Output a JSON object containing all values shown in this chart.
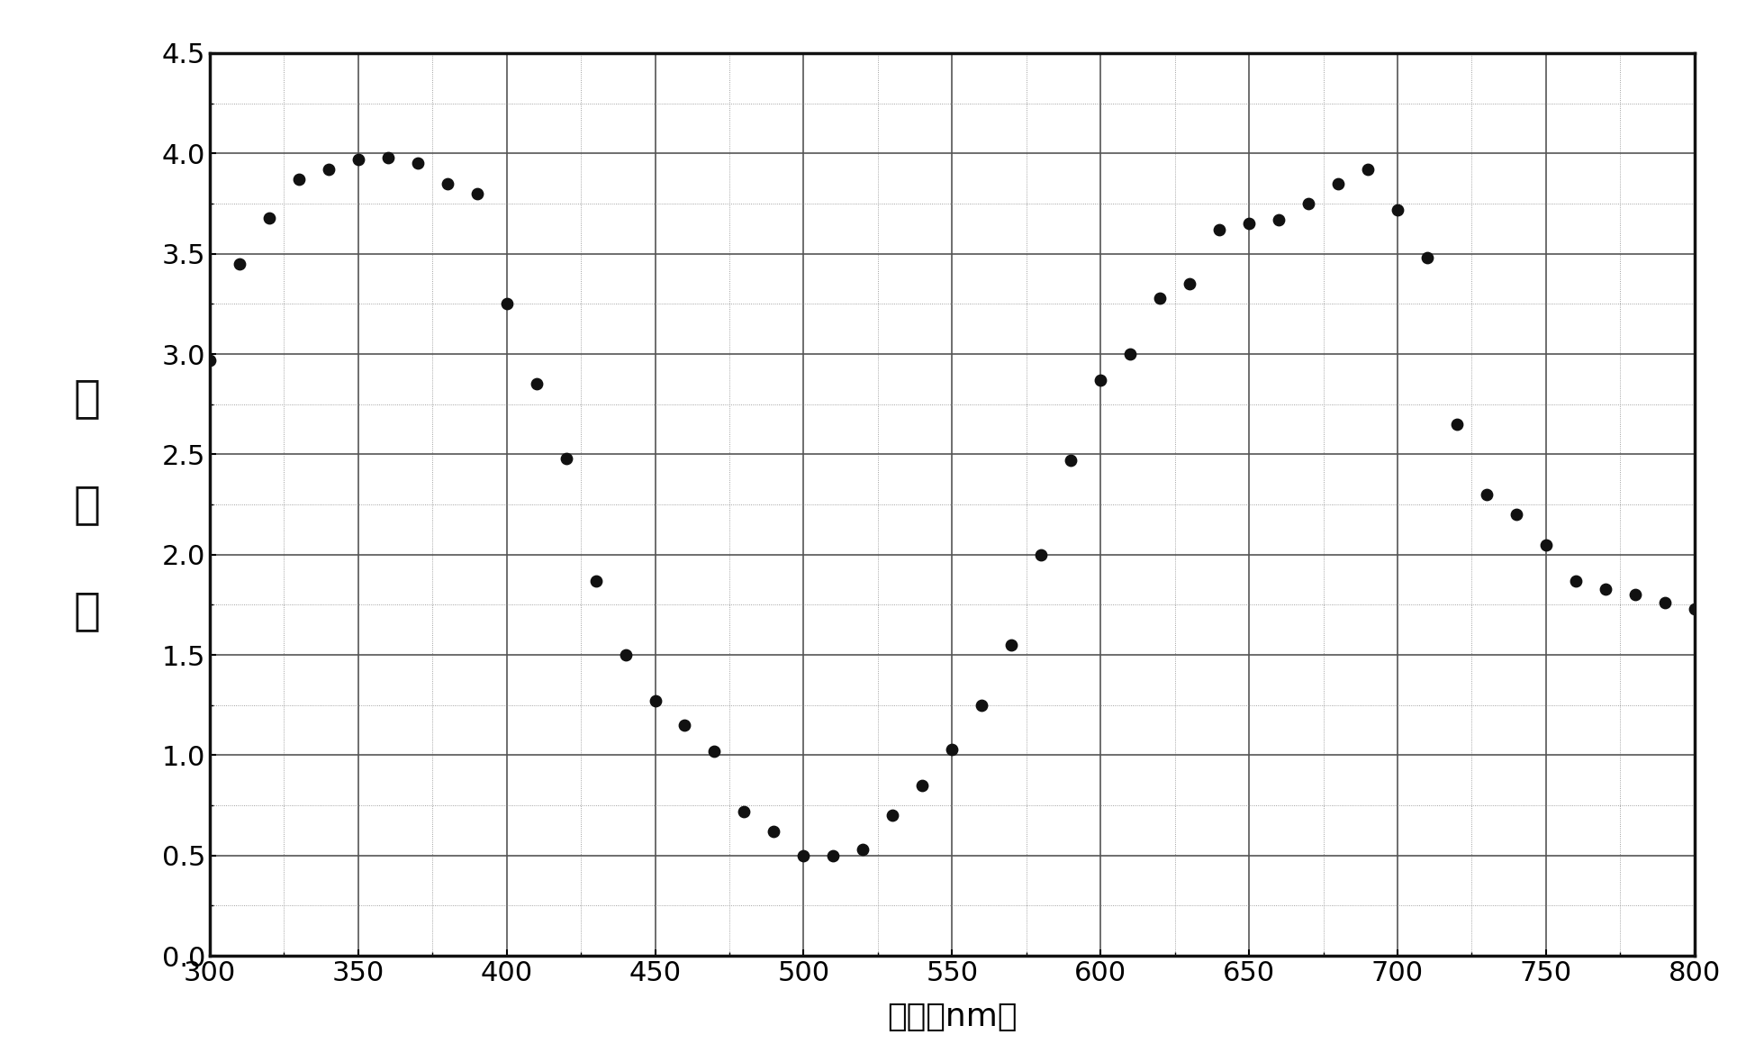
{
  "x": [
    300,
    310,
    320,
    330,
    340,
    350,
    360,
    370,
    380,
    390,
    400,
    410,
    420,
    430,
    440,
    450,
    460,
    470,
    480,
    490,
    500,
    510,
    520,
    530,
    540,
    550,
    560,
    570,
    580,
    590,
    600,
    610,
    620,
    630,
    640,
    650,
    660,
    670,
    680,
    690,
    700,
    710,
    720,
    730,
    740,
    750,
    760,
    770,
    780,
    790,
    800
  ],
  "y": [
    2.97,
    3.45,
    3.68,
    3.87,
    3.92,
    3.97,
    3.98,
    3.95,
    3.85,
    3.8,
    3.25,
    2.85,
    2.48,
    1.87,
    1.5,
    1.27,
    1.15,
    1.02,
    0.72,
    0.62,
    0.5,
    0.5,
    0.53,
    0.7,
    0.85,
    1.03,
    1.25,
    1.55,
    2.0,
    2.47,
    2.87,
    3.0,
    3.28,
    3.35,
    3.62,
    3.65,
    3.67,
    3.75,
    3.85,
    3.92,
    3.72,
    3.48,
    2.65,
    2.3,
    2.2,
    2.05,
    1.87,
    1.83,
    1.8,
    1.76,
    1.73
  ],
  "xlabel": "波长（nm）",
  "ylabel_chars": [
    "吸",
    "光",
    "度"
  ],
  "xlim": [
    300,
    800
  ],
  "ylim": [
    0,
    4.5
  ],
  "xticks": [
    300,
    350,
    400,
    450,
    500,
    550,
    600,
    650,
    700,
    750,
    800
  ],
  "yticks": [
    0,
    0.5,
    1,
    1.5,
    2,
    2.5,
    3,
    3.5,
    4,
    4.5
  ],
  "dot_color": "#111111",
  "dot_size": 80,
  "background_color": "#ffffff",
  "plot_bg_color": "#ffffff",
  "major_grid_color": "#555555",
  "minor_grid_color": "#888888",
  "spine_color": "#111111",
  "spine_linewidth": 2.5,
  "xlabel_fontsize": 26,
  "ylabel_fontsize": 36,
  "tick_fontsize": 22,
  "major_grid_linewidth": 1.2,
  "minor_grid_linewidth": 0.6
}
